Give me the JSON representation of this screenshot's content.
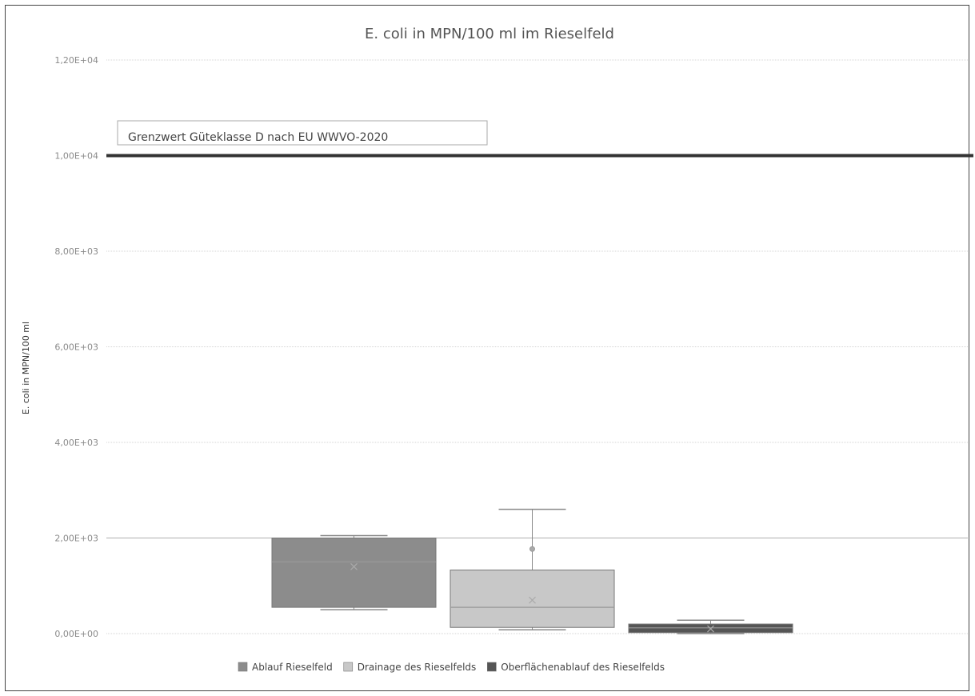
{
  "chart_data": {
    "type": "box",
    "title": "E. coli in MPN/100 ml  im Rieselfeld",
    "ylabel": "E. coli in MPN/100 ml",
    "xlabel": "",
    "ylim": [
      0,
      12000
    ],
    "yticks": [
      0,
      2000,
      4000,
      6000,
      8000,
      10000,
      12000
    ],
    "ytick_labels": [
      "0,00E+00",
      "2,00E+03",
      "4,00E+03",
      "6,00E+03",
      "8,00E+03",
      "1,00E+04",
      "1,20E+04"
    ],
    "grid": true,
    "legend_position": "bottom",
    "reference_line": {
      "value": 10000,
      "label": "Grenzwert Güteklasse D nach EU WWVO-2020",
      "color": "#333333"
    },
    "series": [
      {
        "name": "Ablauf Rieselfeld",
        "color": "#8c8c8c",
        "whisker_low": 500,
        "q1": 550,
        "median": 1500,
        "q3": 2000,
        "whisker_high": 2050,
        "mean": 1400
      },
      {
        "name": "Drainage des Rieselfelds",
        "color": "#c8c8c8",
        "whisker_low": 80,
        "q1": 130,
        "median": 550,
        "q3": 1330,
        "whisker_high": 2600,
        "mean": 700,
        "outliers": [
          1770
        ]
      },
      {
        "name": "Oberflächenablauf des Rieselfelds",
        "color": "#555555",
        "whisker_low": 0,
        "q1": 20,
        "median": 120,
        "q3": 200,
        "whisker_high": 280,
        "mean": 100
      }
    ]
  }
}
